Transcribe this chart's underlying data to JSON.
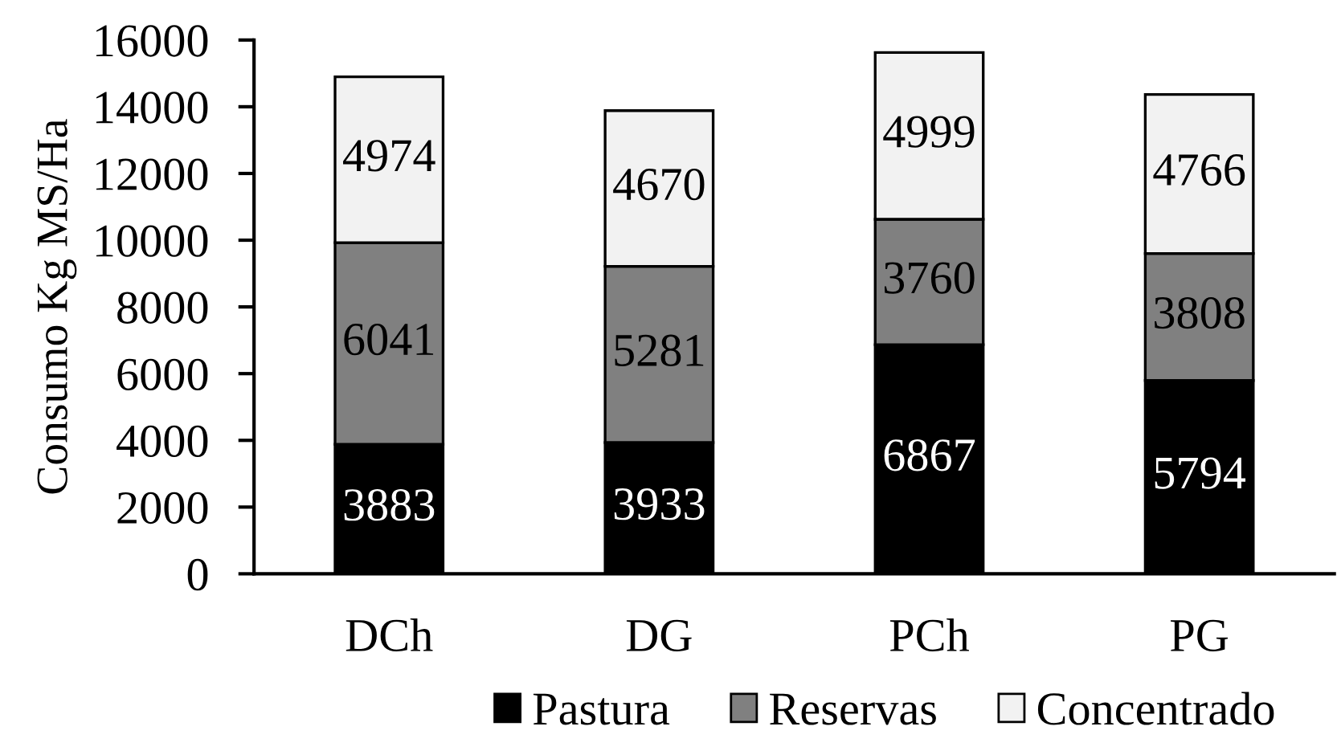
{
  "chart_data": {
    "type": "bar",
    "stacked": true,
    "ylabel": "Consumo Kg MS/Ha",
    "categories": [
      "DCh",
      "DG",
      "PCh",
      "PG"
    ],
    "series": [
      {
        "name": "Pastura",
        "color": "#000000",
        "values": [
          3883,
          3933,
          6867,
          5794
        ]
      },
      {
        "name": "Reservas",
        "color": "#808080",
        "values": [
          6041,
          5281,
          3760,
          3808
        ]
      },
      {
        "name": "Concentrado",
        "color": "#f2f2f2",
        "values": [
          4974,
          4670,
          4999,
          4766
        ]
      }
    ],
    "ylim": [
      0,
      16000
    ],
    "yticks": [
      0,
      2000,
      4000,
      6000,
      8000,
      10000,
      12000,
      14000,
      16000
    ],
    "data_labels": true,
    "grid": false,
    "legend": "bottom"
  }
}
